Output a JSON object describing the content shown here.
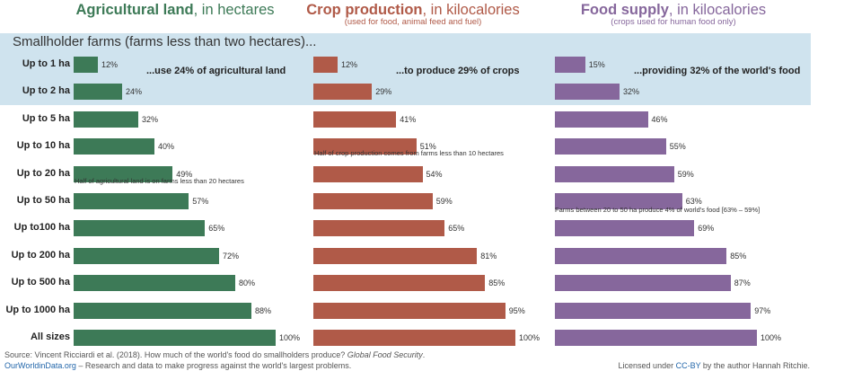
{
  "colors": {
    "agricultural": "#3d7a57",
    "crop": "#b05a48",
    "food": "#86679c",
    "highlight": "#cfe3ee"
  },
  "panels": {
    "agricultural": {
      "title_bold": "Agricultural land",
      "title_rest": ", in hectares",
      "subtitle": ""
    },
    "crop": {
      "title_bold": "Crop production",
      "title_rest": ", in kilocalories",
      "subtitle": "(used for food, animal feed and fuel)"
    },
    "food": {
      "title_bold": "Food supply",
      "title_rest": ", in kilocalories",
      "subtitle": "(crops used for human food only)"
    }
  },
  "highlight": {
    "heading": "Smallholder farms (farms less than two hectares)...",
    "agricultural_note": "...use 24% of agricultural land",
    "crop_note": "...to produce 29% of crops",
    "food_note": "...providing 32% of the world's food"
  },
  "notes": {
    "agricultural": "Half of agricultural land is on farms less than 20 hectares",
    "crop": "Half of crop production comes from farms less than 10 hectares",
    "food": "Farms between 20 to 50 ha  produce 4% of world's food [63% – 59%]"
  },
  "chart_data": {
    "type": "bar",
    "categories": [
      "Up to 1 ha",
      "Up to 2 ha",
      "Up to 5 ha",
      "Up to 10 ha",
      "Up to 20 ha",
      "Up to 50 ha",
      "Up to100 ha",
      "Up to 200 ha",
      "Up to 500 ha",
      "Up to 1000 ha",
      "All sizes"
    ],
    "series": [
      {
        "name": "Agricultural land",
        "values": [
          12,
          24,
          32,
          40,
          49,
          57,
          65,
          72,
          80,
          88,
          100
        ],
        "labels": [
          "12%",
          "24%",
          "32%",
          "40%",
          "49%",
          "57%",
          "65%",
          "72%",
          "80%",
          "88%",
          "100%"
        ]
      },
      {
        "name": "Crop production",
        "values": [
          12,
          29,
          41,
          51,
          54,
          59,
          65,
          81,
          85,
          95,
          100
        ],
        "labels": [
          "12%",
          "29%",
          "41%",
          "51%",
          "54%",
          "59%",
          "65%",
          "81%",
          "85%",
          "95%",
          "100%"
        ]
      },
      {
        "name": "Food supply",
        "values": [
          15,
          32,
          46,
          55,
          59,
          63,
          69,
          85,
          87,
          97,
          100
        ],
        "labels": [
          "15%",
          "32%",
          "46%",
          "55%",
          "59%",
          "63%",
          "69%",
          "85%",
          "87%",
          "97%",
          "100%"
        ]
      }
    ],
    "xlim": [
      0,
      100
    ]
  },
  "footer": {
    "source_prefix": "Source: Vincent Ricciardi et al. (2018). How much of the world's food do smallholders produce? ",
    "source_journal": "Global Food Security",
    "source_suffix": ".",
    "owid_link": "OurWorldinData.org",
    "owid_text": " – Research and data to make progress against the world's largest problems.",
    "license_prefix": "Licensed under ",
    "license_link": "CC-BY",
    "license_suffix": " by the author Hannah Ritchie."
  }
}
